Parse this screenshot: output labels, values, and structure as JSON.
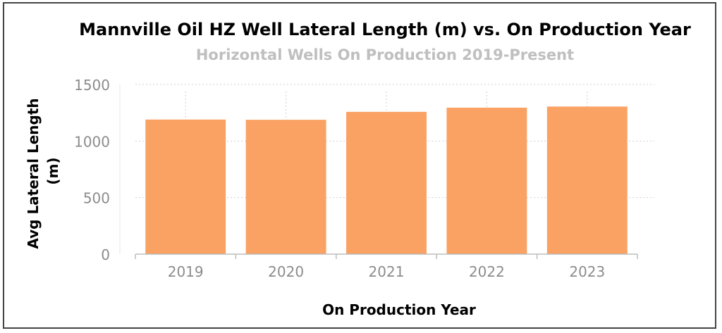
{
  "chart_data": {
    "type": "bar",
    "title": "Mannville Oil HZ Well Lateral Length (m) vs. On Production Year",
    "subtitle": "Horizontal Wells On Production 2019-Present",
    "xlabel": "On Production Year",
    "ylabel_lines": [
      "Avg Lateral Length",
      "(m)"
    ],
    "categories": [
      "2019",
      "2020",
      "2021",
      "2022",
      "2023"
    ],
    "values": [
      1190,
      1188,
      1258,
      1295,
      1305
    ],
    "ylim": [
      0,
      1500
    ],
    "yticks": [
      {
        "value": 0,
        "label": "0"
      },
      {
        "value": 500,
        "label": "500"
      },
      {
        "value": 1000,
        "label": "1000"
      },
      {
        "value": 1500,
        "label": "1500"
      }
    ],
    "grid": true,
    "colors": {
      "bar": "#FAA264",
      "title": "#000000",
      "subtitle": "#BFBFBF",
      "tick": "#8C8C8C",
      "grid": "#D0D0D0",
      "axis": "#BDBDBD"
    }
  }
}
